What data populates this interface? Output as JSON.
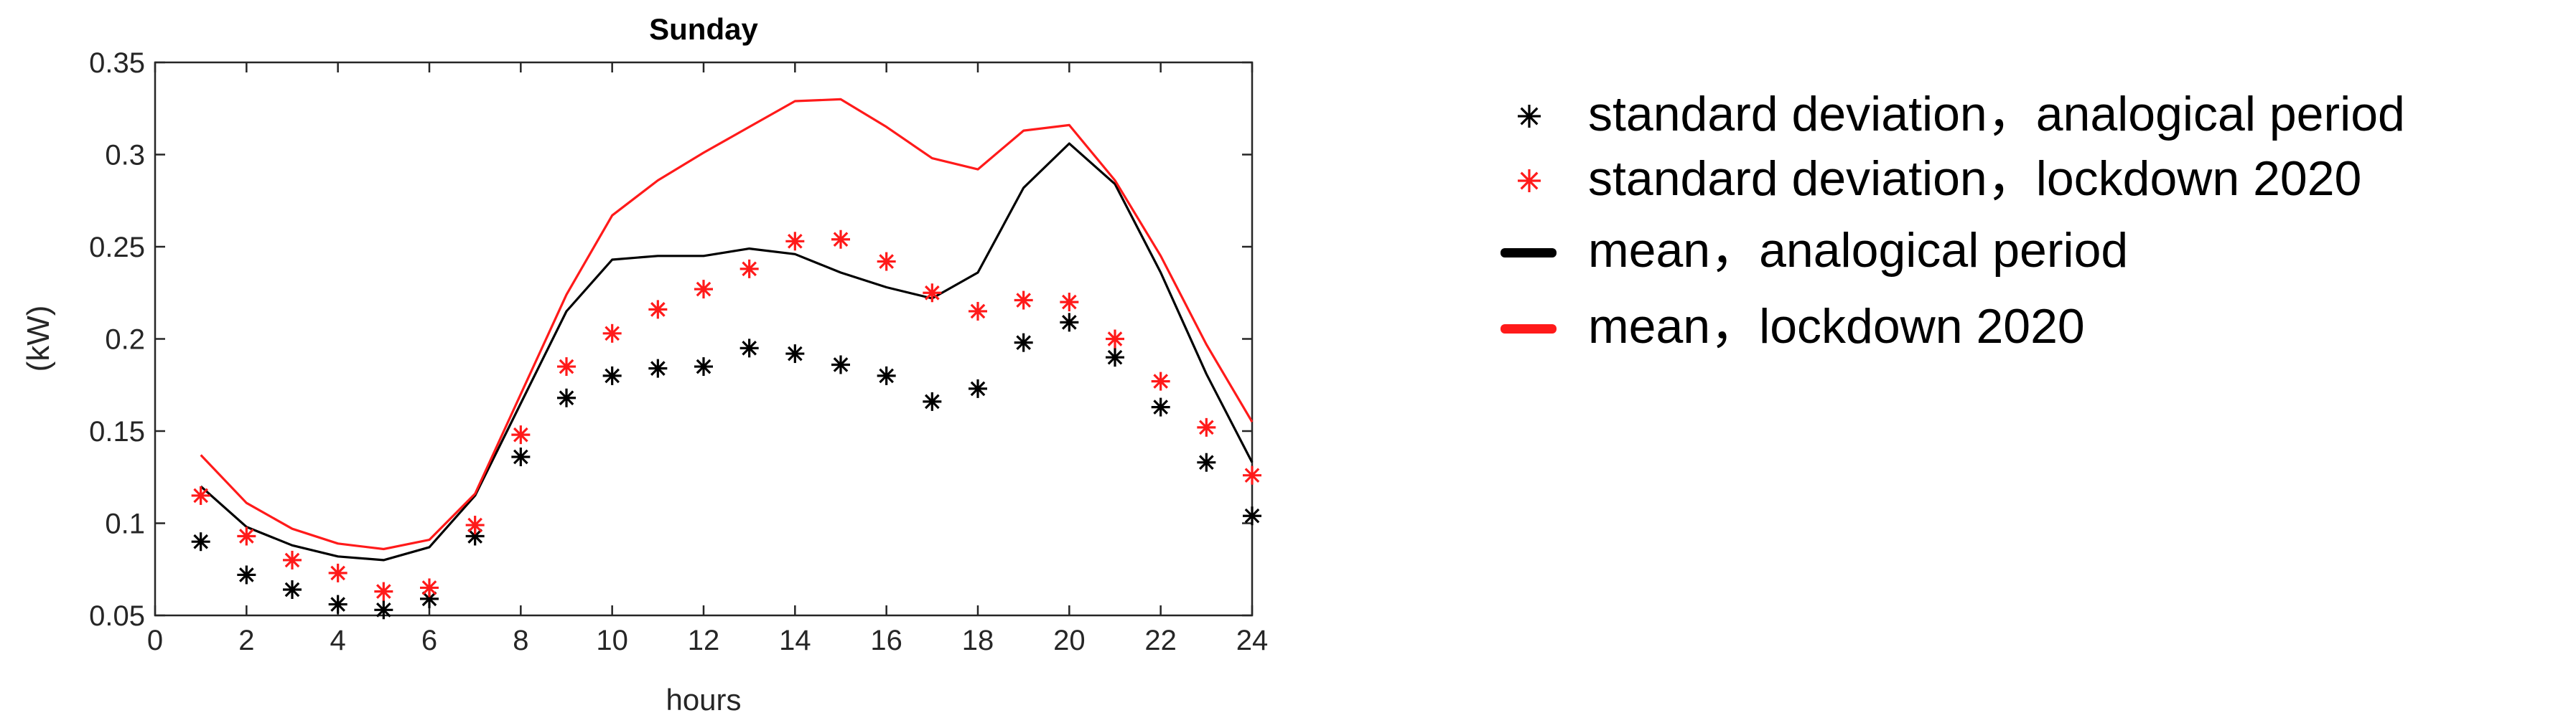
{
  "chart_data": {
    "type": "line",
    "title": "Sunday",
    "xlabel": "hours",
    "ylabel": "(kW)",
    "xlim": [
      0,
      24
    ],
    "ylim": [
      0.05,
      0.35
    ],
    "xticks": [
      0,
      2,
      4,
      6,
      8,
      10,
      12,
      14,
      16,
      18,
      20,
      22,
      24
    ],
    "yticks": [
      0.05,
      0.1,
      0.15,
      0.2,
      0.25,
      0.3,
      0.35
    ],
    "ytick_labels": [
      "0.05",
      "0.1",
      "0.15",
      "0.2",
      "0.25",
      "0.3",
      "0.35"
    ],
    "grid": false,
    "legend_position": "right",
    "x": [
      1,
      2,
      3,
      4,
      5,
      6,
      7,
      8,
      9,
      10,
      11,
      12,
      13,
      14,
      15,
      16,
      17,
      18,
      19,
      20,
      21,
      22,
      23,
      24
    ],
    "series": [
      {
        "name": "standard deviation，analogical period",
        "kind": "scatter",
        "marker": "asterisk",
        "color": "#000000",
        "values": [
          0.09,
          0.072,
          0.064,
          0.056,
          0.053,
          0.059,
          0.093,
          0.136,
          0.168,
          0.18,
          0.184,
          0.185,
          0.195,
          0.192,
          0.186,
          0.18,
          0.166,
          0.173,
          0.198,
          0.209,
          0.19,
          0.163,
          0.133,
          0.104
        ]
      },
      {
        "name": "standard deviation，lockdown 2020",
        "kind": "scatter",
        "marker": "asterisk",
        "color": "#ff1a1a",
        "values": [
          0.115,
          0.093,
          0.08,
          0.073,
          0.063,
          0.065,
          0.099,
          0.148,
          0.185,
          0.203,
          0.216,
          0.227,
          0.238,
          0.253,
          0.254,
          0.242,
          0.225,
          0.215,
          0.221,
          0.22,
          0.2,
          0.177,
          0.152,
          0.126
        ]
      },
      {
        "name": "mean，analogical period",
        "kind": "line",
        "color": "#000000",
        "values": [
          0.12,
          0.098,
          0.088,
          0.082,
          0.08,
          0.087,
          0.115,
          0.165,
          0.215,
          0.243,
          0.245,
          0.245,
          0.249,
          0.246,
          0.236,
          0.228,
          0.222,
          0.236,
          0.282,
          0.306,
          0.284,
          0.236,
          0.181,
          0.133
        ]
      },
      {
        "name": "mean，lockdown 2020",
        "kind": "line",
        "color": "#ff1a1a",
        "values": [
          0.137,
          0.111,
          0.097,
          0.089,
          0.086,
          0.091,
          0.116,
          0.17,
          0.224,
          0.267,
          0.286,
          0.301,
          0.315,
          0.329,
          0.33,
          0.315,
          0.298,
          0.292,
          0.313,
          0.316,
          0.286,
          0.245,
          0.197,
          0.155
        ]
      }
    ]
  }
}
